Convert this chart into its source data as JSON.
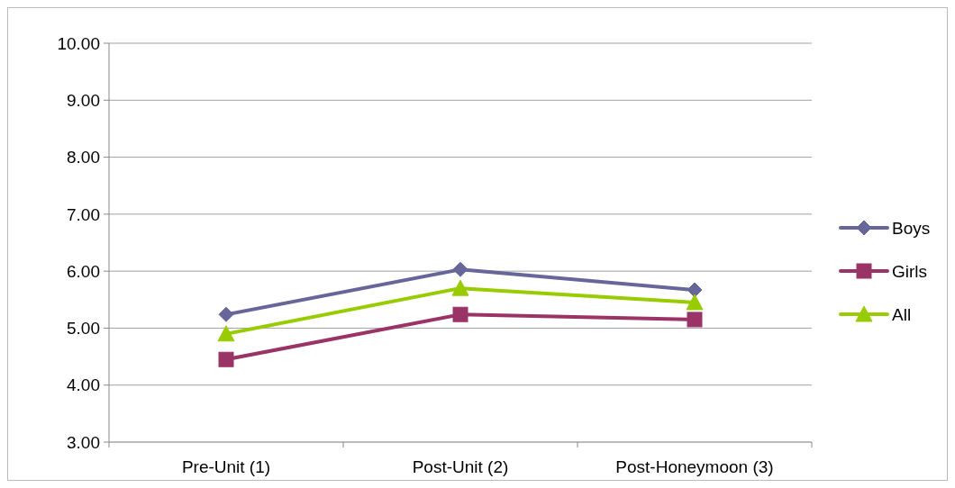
{
  "chart_data": {
    "type": "line",
    "categories": [
      "Pre-Unit (1)",
      "Post-Unit (2)",
      "Post-Honeymoon (3)"
    ],
    "series": [
      {
        "name": "Boys",
        "color": "#66669a",
        "marker": "diamond",
        "values": [
          5.24,
          6.03,
          5.67
        ]
      },
      {
        "name": "Girls",
        "color": "#9b3466",
        "marker": "square",
        "values": [
          4.45,
          5.24,
          5.15
        ]
      },
      {
        "name": "All",
        "color": "#99cc00",
        "marker": "triangle",
        "values": [
          4.9,
          5.7,
          5.45
        ]
      }
    ],
    "ylim": [
      3,
      10
    ],
    "yticks": [
      {
        "value": 3,
        "label": "3.00"
      },
      {
        "value": 4,
        "label": "4.00"
      },
      {
        "value": 5,
        "label": "5.00"
      },
      {
        "value": 6,
        "label": "6.00"
      },
      {
        "value": 7,
        "label": "7.00"
      },
      {
        "value": 8,
        "label": "8.00"
      },
      {
        "value": 9,
        "label": "9.00"
      },
      {
        "value": 10,
        "label": "10.00"
      }
    ],
    "grid": "y",
    "legend": "right"
  }
}
